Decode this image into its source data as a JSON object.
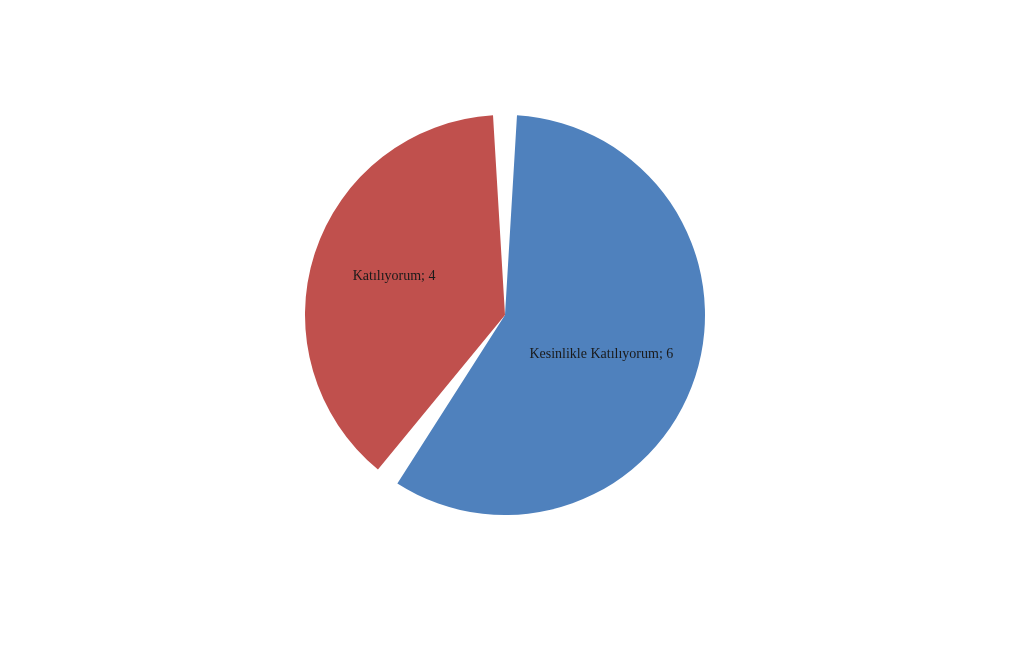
{
  "chart_data": {
    "type": "pie",
    "categories": [
      "Kesinlikle Katılıyorum",
      "Katılıyorum"
    ],
    "values": [
      6,
      4
    ],
    "colors": [
      "#4f81bd",
      "#c0504d"
    ],
    "value_labels": [
      "; 6",
      "; 4"
    ],
    "legend": false
  }
}
